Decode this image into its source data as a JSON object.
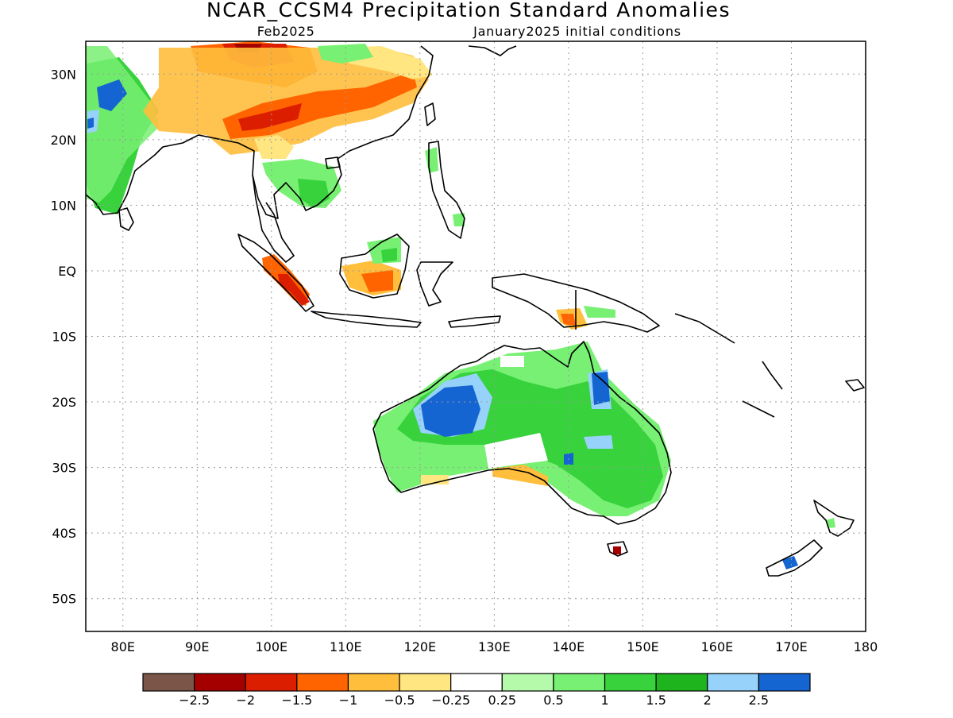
{
  "title": "NCAR_CCSM4 Precipitation Standard Anomalies",
  "subtitle_left": "Feb2025",
  "subtitle_right": "January2025 initial conditions",
  "axes": {
    "lon_ticks": [
      {
        "lon": 80,
        "label": "80E"
      },
      {
        "lon": 90,
        "label": "90E"
      },
      {
        "lon": 100,
        "label": "100E"
      },
      {
        "lon": 110,
        "label": "110E"
      },
      {
        "lon": 120,
        "label": "120E"
      },
      {
        "lon": 130,
        "label": "130E"
      },
      {
        "lon": 140,
        "label": "140E"
      },
      {
        "lon": 150,
        "label": "150E"
      },
      {
        "lon": 160,
        "label": "160E"
      },
      {
        "lon": 170,
        "label": "170E"
      },
      {
        "lon": 180,
        "label": "180"
      }
    ],
    "lat_ticks": [
      {
        "lat": 30,
        "label": "30N"
      },
      {
        "lat": 20,
        "label": "20N"
      },
      {
        "lat": 10,
        "label": "10N"
      },
      {
        "lat": 0,
        "label": "EQ"
      },
      {
        "lat": -10,
        "label": "10S"
      },
      {
        "lat": -20,
        "label": "20S"
      },
      {
        "lat": -30,
        "label": "30S"
      },
      {
        "lat": -40,
        "label": "40S"
      },
      {
        "lat": -50,
        "label": "50S"
      }
    ],
    "lon_range": [
      75,
      180
    ],
    "lat_range": [
      -55,
      35
    ],
    "grid": "dotted"
  },
  "colorbar": {
    "colors": [
      "#7a5548",
      "#a50000",
      "#dc1e00",
      "#ff6400",
      "#ffbe3c",
      "#ffe680",
      "#ffffff",
      "#b4faaa",
      "#78f073",
      "#37d23c",
      "#1eb41e",
      "#96d2fa",
      "#1464d2"
    ],
    "labels": [
      "−2.5",
      "−2",
      "−1.5",
      "−1",
      "−0.5",
      "−0.25",
      "0.25",
      "0.5",
      "1",
      "1.5",
      "2",
      "2.5"
    ]
  }
}
